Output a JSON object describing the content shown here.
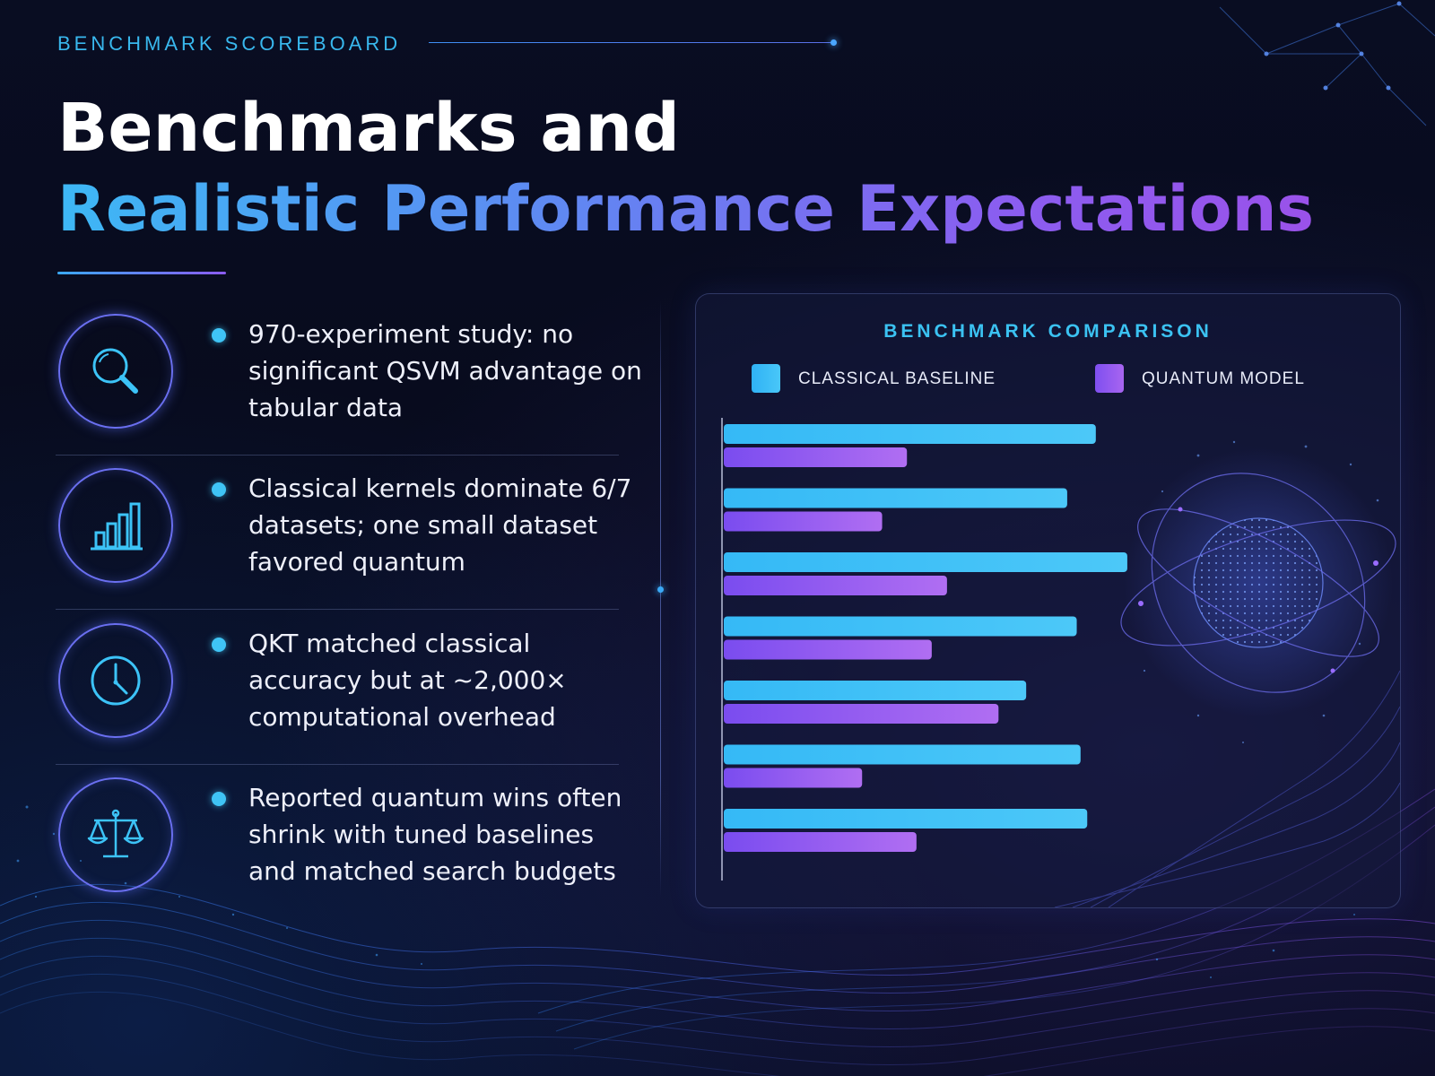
{
  "header": {
    "eyebrow": "BENCHMARK SCOREBOARD",
    "title_line1": "Benchmarks and",
    "title_line2": "Realistic Performance Expectations"
  },
  "points": [
    {
      "icon": "magnifier-icon",
      "text": "970-experiment study: no significant QSVM advantage on tabular data"
    },
    {
      "icon": "bar-chart-icon",
      "text": "Classical kernels dominate 6/7 datasets; one small dataset favored quantum"
    },
    {
      "icon": "clock-icon",
      "text": "QKT matched classical accuracy but at ~2,000× computational overhead"
    },
    {
      "icon": "balance-scale-icon",
      "text": "Reported quantum wins often shrink with tuned baselines and matched search budgets"
    }
  ],
  "chart_data": {
    "type": "bar",
    "orientation": "horizontal",
    "title": "BENCHMARK COMPARISON",
    "legend_position": "top",
    "grid": false,
    "axis_labels_shown": false,
    "categories": [
      "",
      "",
      "",
      "",
      "",
      "",
      ""
    ],
    "series": [
      {
        "name": "CLASSICAL BASELINE",
        "color": "#3cc3f7",
        "values": [
          390,
          360,
          423,
          370,
          317,
          374,
          381
        ]
      },
      {
        "name": "QUANTUM MODEL",
        "color": "#9a5cf0",
        "values": [
          192,
          166,
          234,
          218,
          288,
          145,
          202
        ]
      }
    ],
    "xlim": [
      0,
      440
    ]
  },
  "colors": {
    "background": "#070b1c",
    "accent_cyan": "#3cc3f7",
    "accent_purple": "#9a5cf0"
  }
}
